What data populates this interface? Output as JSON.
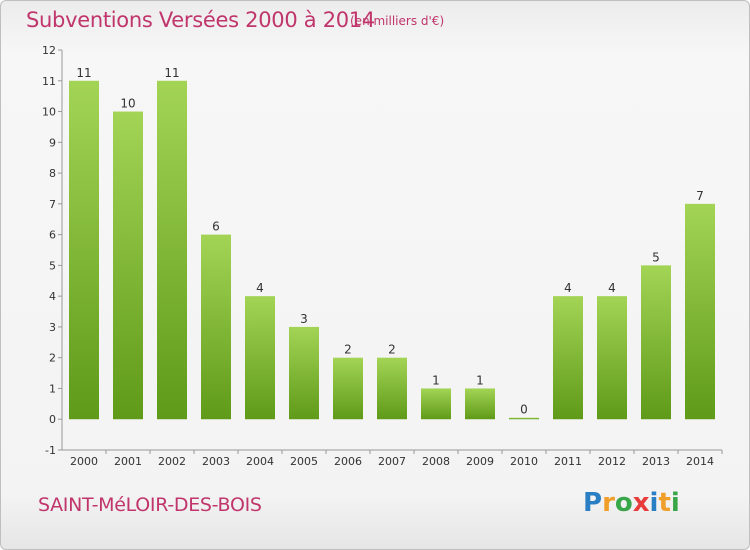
{
  "title": "Subventions Versées 2000 à 2014",
  "subtitle": "(en milliers d'€)",
  "commune": "SAINT-MéLOIR-DES-BOIS",
  "logo": {
    "text": "Proxiti",
    "colors": [
      "#2a7ec4",
      "#f0a02a",
      "#3aa64a",
      "#e83c3c",
      "#2a7ec4",
      "#f0a02a",
      "#3aa64a"
    ]
  },
  "colors": {
    "bar_light": "#a3d455",
    "bar_dark": "#5f9a19",
    "label": "#333333",
    "accent": "#c0356b"
  },
  "chart_data": {
    "type": "bar",
    "categories": [
      "2000",
      "2001",
      "2002",
      "2003",
      "2004",
      "2005",
      "2006",
      "2007",
      "2008",
      "2009",
      "2010",
      "2011",
      "2012",
      "2013",
      "2014"
    ],
    "values": [
      11,
      10,
      11,
      6,
      4,
      3,
      2,
      2,
      1,
      1,
      0,
      4,
      4,
      5,
      7
    ],
    "yticks": [
      -1,
      0,
      1,
      2,
      3,
      4,
      5,
      6,
      7,
      8,
      9,
      10,
      11,
      12
    ],
    "ylim": [
      -1,
      12
    ],
    "grid": false,
    "data_labels": true
  }
}
